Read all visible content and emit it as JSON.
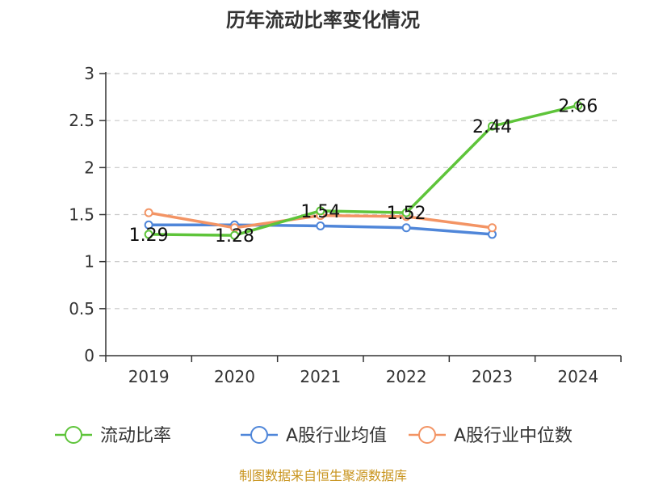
{
  "chart_data": {
    "type": "line",
    "title": "历年流动比率变化情况",
    "categories": [
      "2019",
      "2020",
      "2021",
      "2022",
      "2023",
      "2024"
    ],
    "ylim": [
      0,
      3
    ],
    "yticks": [
      0,
      0.5,
      1,
      1.5,
      2,
      2.5,
      3
    ],
    "grid": true,
    "legend_position": "bottom",
    "series": [
      {
        "name": "流动比率",
        "color": "#5ec43a",
        "values": [
          1.29,
          1.28,
          1.54,
          1.52,
          2.44,
          2.66
        ],
        "labels": [
          "1.29",
          "1.28",
          "1.54",
          "1.52",
          "2.44",
          "2.66"
        ]
      },
      {
        "name": "A股行业均值",
        "color": "#4f86d9",
        "values": [
          1.39,
          1.39,
          1.38,
          1.36,
          1.29,
          null
        ]
      },
      {
        "name": "A股行业中位数",
        "color": "#f39464",
        "values": [
          1.52,
          1.36,
          1.49,
          1.48,
          1.36,
          null
        ]
      }
    ],
    "source": "制图数据来自恒生聚源数据库",
    "source_color": "#c8941e"
  }
}
